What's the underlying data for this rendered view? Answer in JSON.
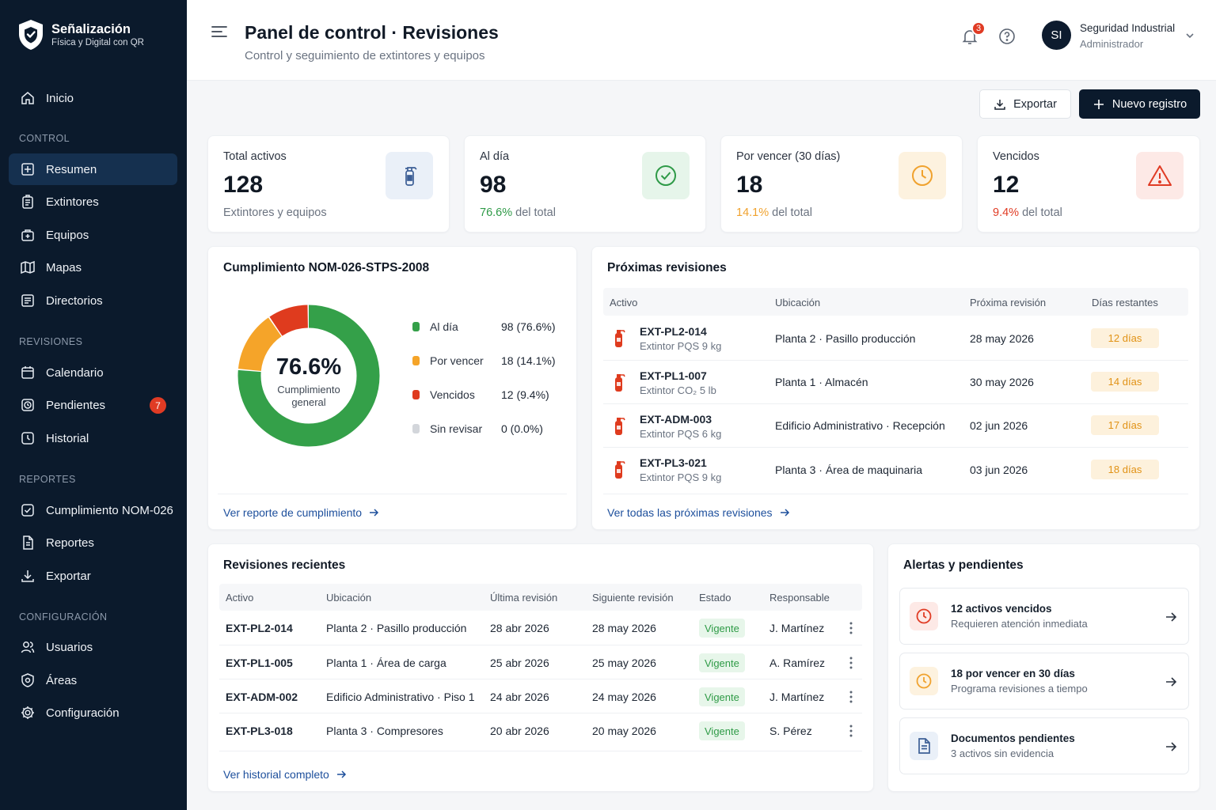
{
  "brand": {
    "title": "Señalización",
    "subtitle": "Física y Digital con QR"
  },
  "sidebar": {
    "home": "Inicio",
    "sections": {
      "control": "CONTROL",
      "revisiones": "REVISIONES",
      "reportes": "REPORTES",
      "configuracion": "CONFIGURACIÓN"
    },
    "items": {
      "resumen": "Resumen",
      "extintores": "Extintores",
      "equipos": "Equipos",
      "mapas": "Mapas",
      "directorios": "Directorios",
      "calendario": "Calendario",
      "pendientes": "Pendientes",
      "pendientes_badge": "7",
      "historial": "Historial",
      "cumplimiento": "Cumplimiento NOM-026",
      "reportes": "Reportes",
      "exportar": "Exportar",
      "usuarios": "Usuarios",
      "areas": "Áreas",
      "configuracion": "Configuración"
    }
  },
  "header": {
    "title": "Panel de control · Revisiones",
    "subtitle": "Control y seguimiento de extintores y equipos",
    "notifications": "3",
    "user": {
      "initials": "SI",
      "name": "Seguridad Industrial",
      "role": "Administrador"
    }
  },
  "actions": {
    "export": "Exportar",
    "new": "Nuevo registro"
  },
  "stats": [
    {
      "label": "Total activos",
      "value": "128",
      "foot_pct": "",
      "foot": "Extintores y equipos",
      "color": "#4a6fa5",
      "bg": "#eaf0f8",
      "icon": "extinguisher-icon"
    },
    {
      "label": "Al día",
      "value": "98",
      "foot_pct": "76.6%",
      "foot": " del total",
      "color": "#2e9a47",
      "bg": "#e6f5ea",
      "icon": "check-circle-icon"
    },
    {
      "label": "Por vencer (30 días)",
      "value": "18",
      "foot_pct": "14.1%",
      "foot": " del total",
      "color": "#f0a22e",
      "bg": "#fdf2df",
      "icon": "clock-icon"
    },
    {
      "label": "Vencidos",
      "value": "12",
      "foot_pct": "9.4%",
      "foot": " del total",
      "color": "#e03b24",
      "bg": "#fde9e6",
      "icon": "warning-icon"
    }
  ],
  "compliance": {
    "title": "Cumplimiento NOM-026-STPS-2008",
    "center_value": "76.6%",
    "center_label_1": "Cumplimiento",
    "center_label_2": "general",
    "legend": [
      {
        "label": "Al día",
        "value": "98 (76.6%)",
        "count": 98,
        "color": "#34a049"
      },
      {
        "label": "Por vencer",
        "value": "18 (14.1%)",
        "count": 18,
        "color": "#f5a429"
      },
      {
        "label": "Vencidos",
        "value": "12 (9.4%)",
        "count": 12,
        "color": "#df3b1e"
      },
      {
        "label": "Sin revisar",
        "value": "0 (0.0%)",
        "count": 0,
        "color": "#d3d6db"
      }
    ],
    "link": "Ver reporte de cumplimiento"
  },
  "upcoming": {
    "title": "Próximas revisiones",
    "headers": [
      "Activo",
      "Ubicación",
      "Próxima revisión",
      "Días restantes"
    ],
    "rows": [
      {
        "id": "EXT-PL2-014",
        "desc": "Extintor PQS 9 kg",
        "loc": "Planta 2 · Pasillo producción",
        "date": "28 may 2026",
        "days": "12 días"
      },
      {
        "id": "EXT-PL1-007",
        "desc": "Extintor CO₂ 5 lb",
        "loc": "Planta 1 · Almacén",
        "date": "30 may 2026",
        "days": "14 días"
      },
      {
        "id": "EXT-ADM-003",
        "desc": "Extintor PQS 6 kg",
        "loc": "Edificio Administrativo · Recepción",
        "date": "02 jun 2026",
        "days": "17 días"
      },
      {
        "id": "EXT-PL3-021",
        "desc": "Extintor PQS 9 kg",
        "loc": "Planta 3 · Área de maquinaria",
        "date": "03 jun 2026",
        "days": "18 días"
      }
    ],
    "link": "Ver todas las próximas revisiones"
  },
  "recent": {
    "title": "Revisiones recientes",
    "headers": [
      "Activo",
      "Ubicación",
      "Última revisión",
      "Siguiente revisión",
      "Estado",
      "Responsable"
    ],
    "rows": [
      {
        "id": "EXT-PL2-014",
        "loc": "Planta 2 · Pasillo producción",
        "last": "28 abr 2026",
        "next": "28 may 2026",
        "status": "Vigente",
        "resp": "J. Martínez"
      },
      {
        "id": "EXT-PL1-005",
        "loc": "Planta 1 · Área de carga",
        "last": "25 abr 2026",
        "next": "25 may 2026",
        "status": "Vigente",
        "resp": "A. Ramírez"
      },
      {
        "id": "EXT-ADM-002",
        "loc": "Edificio Administrativo · Piso 1",
        "last": "24 abr 2026",
        "next": "24 may 2026",
        "status": "Vigente",
        "resp": "J. Martínez"
      },
      {
        "id": "EXT-PL3-018",
        "loc": "Planta 3 · Compresores",
        "last": "20 abr 2026",
        "next": "20 may 2026",
        "status": "Vigente",
        "resp": "S. Pérez"
      }
    ],
    "link": "Ver historial completo"
  },
  "alerts": {
    "title": "Alertas y pendientes",
    "items": [
      {
        "title": "12 activos vencidos",
        "sub": "Requieren atención inmediata",
        "icon": "clock-icon",
        "color": "#e03b24",
        "bg": "#fde9e6"
      },
      {
        "title": "18 por vencer en 30 días",
        "sub": "Programa revisiones a tiempo",
        "icon": "clock-icon",
        "color": "#f0a22e",
        "bg": "#fdf2df"
      },
      {
        "title": "Documentos pendientes",
        "sub": "3 activos sin evidencia",
        "icon": "document-icon",
        "color": "#3d5f96",
        "bg": "#eaf0f8"
      }
    ]
  }
}
